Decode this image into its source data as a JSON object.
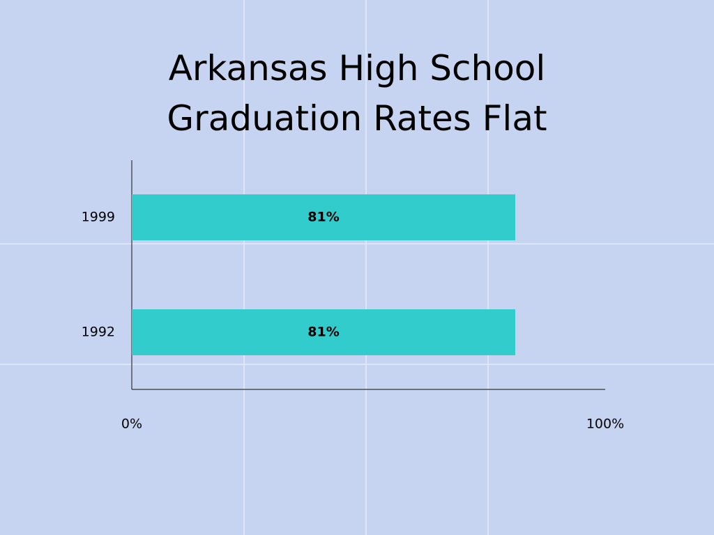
{
  "chart_data": {
    "type": "bar",
    "orientation": "horizontal",
    "title": "Arkansas High School Graduation Rates Flat",
    "categories": [
      "1999",
      "1992"
    ],
    "values": [
      81,
      81
    ],
    "value_labels": [
      "81%",
      "81%"
    ],
    "color": "#33cccc",
    "xlim": [
      0,
      100
    ],
    "xticks": [
      {
        "value": 0,
        "label": "0%"
      },
      {
        "value": 100,
        "label": "100%"
      }
    ]
  }
}
